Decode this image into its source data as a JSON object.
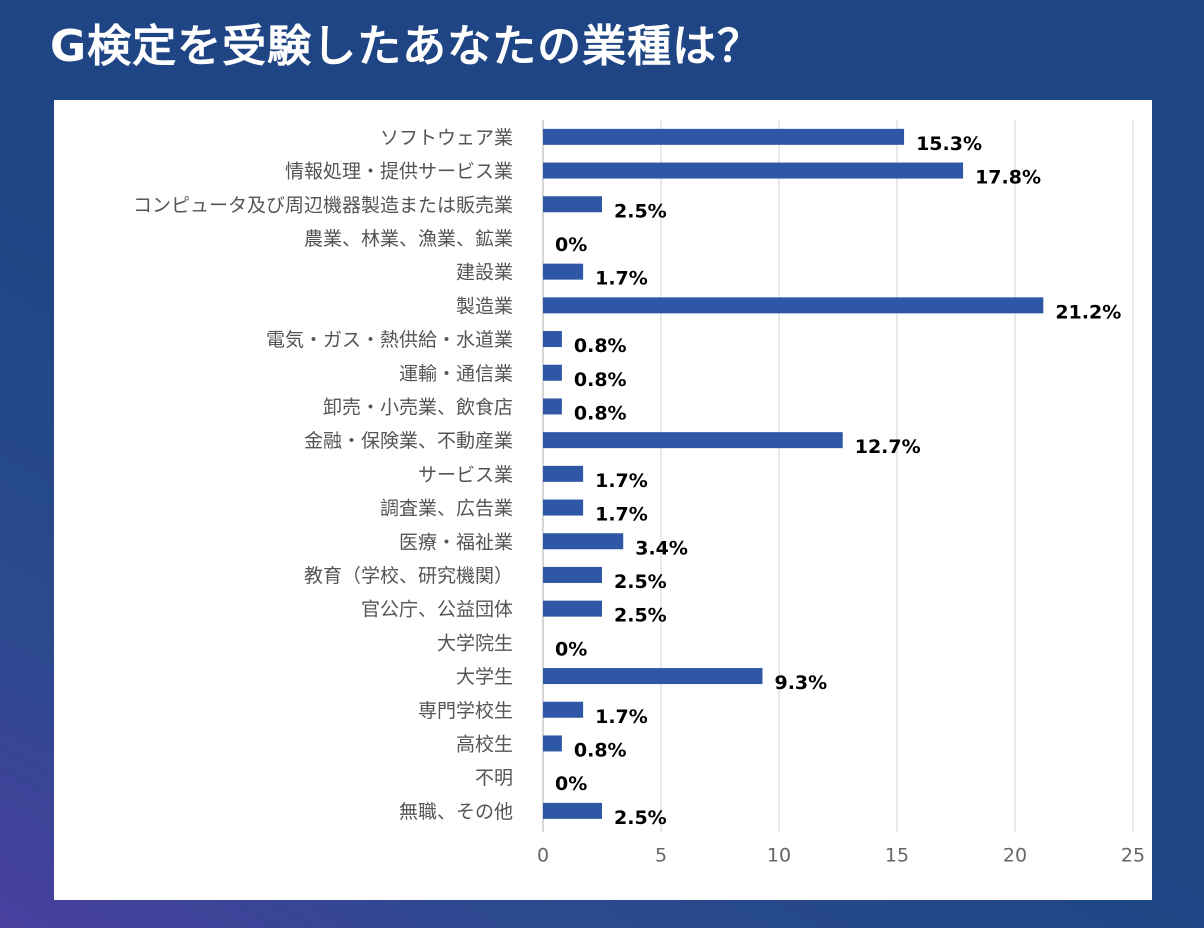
{
  "title": "G検定を受験したあなたの業種は？",
  "chart_data": {
    "type": "bar",
    "orientation": "horizontal",
    "categories": [
      "ソフトウェア業",
      "情報処理・提供サービス業",
      "コンピュータ及び周辺機器製造または販売業",
      "農業、林業、漁業、鉱業",
      "建設業",
      "製造業",
      "電気・ガス・熱供給・水道業",
      "運輸・通信業",
      "卸売・小売業、飲食店",
      "金融・保険業、不動産業",
      "サービス業",
      "調査業、広告業",
      "医療・福祉業",
      "教育（学校、研究機関）",
      "官公庁、公益団体",
      "大学院生",
      "大学生",
      "専門学校生",
      "高校生",
      "不明",
      "無職、その他"
    ],
    "values": [
      15.3,
      17.8,
      2.5,
      0,
      1.7,
      21.2,
      0.8,
      0.8,
      0.8,
      12.7,
      1.7,
      1.7,
      3.4,
      2.5,
      2.5,
      0,
      9.3,
      1.7,
      0.8,
      0,
      2.5
    ],
    "value_labels": [
      "15.3%",
      "17.8%",
      "2.5%",
      "0%",
      "1.7%",
      "21.2%",
      "0.8%",
      "0.8%",
      "0.8%",
      "12.7%",
      "1.7%",
      "1.7%",
      "3.4%",
      "2.5%",
      "2.5%",
      "0%",
      "9.3%",
      "1.7%",
      "0.8%",
      "0%",
      "2.5%"
    ],
    "xlim": [
      0,
      25
    ],
    "xticks": [
      0,
      5,
      10,
      15,
      20,
      25
    ],
    "grid": true,
    "bar_color": "#2e57a6"
  }
}
